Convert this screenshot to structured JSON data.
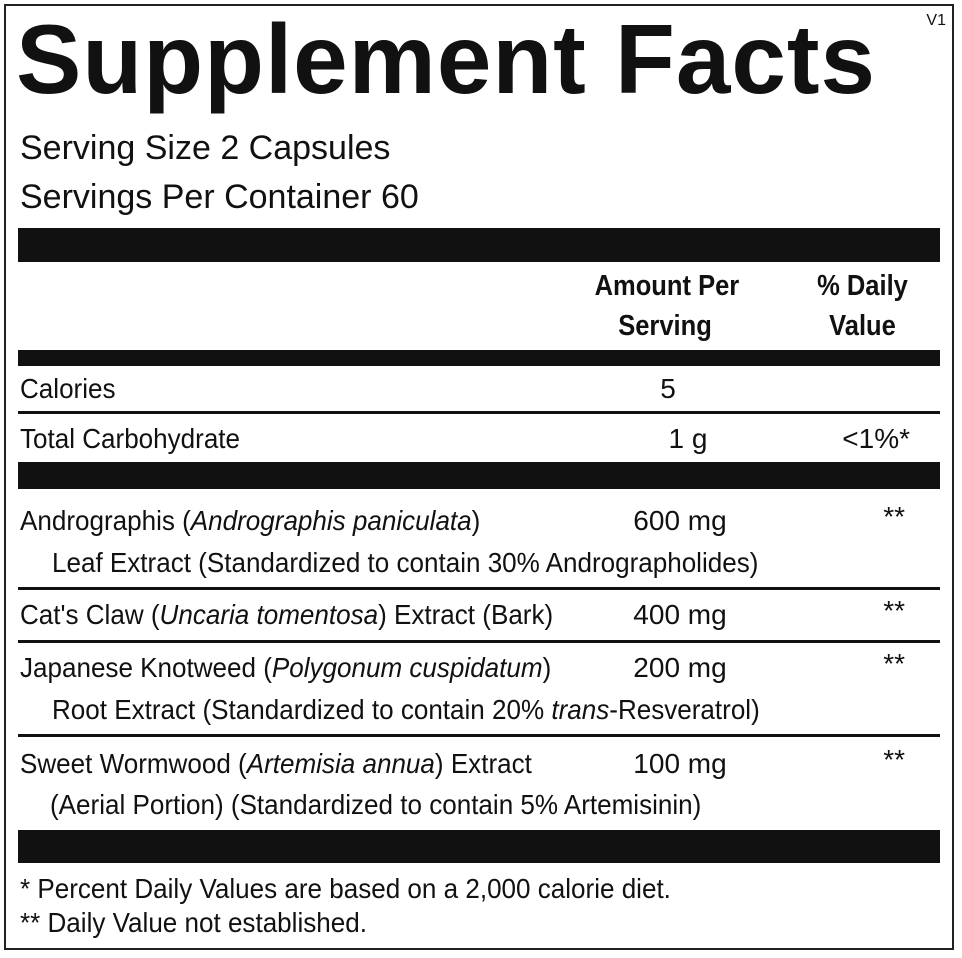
{
  "title": "Supplement Facts",
  "version": "V1",
  "serving_size": "Serving Size  2 Capsules",
  "servings_per_container": "Servings Per Container  60",
  "header": {
    "amount_line1": "Amount Per",
    "amount_line2": "Serving",
    "dv_line1": "% Daily",
    "dv_line2": "Value"
  },
  "nutrients": [
    {
      "name": "Calories",
      "amount": "5",
      "dv": ""
    },
    {
      "name": "Total Carbohydrate",
      "amount": "1 g",
      "dv": "<1%*"
    }
  ],
  "ingredients": [
    {
      "name": "Andrographis (",
      "latin": "Andrographis paniculata",
      "name_end": ")",
      "line2": "Leaf Extract (Standardized to contain 30% Andrographolides)",
      "amount": "600 mg",
      "dv": "**"
    },
    {
      "name": "Cat's Claw (",
      "latin": "Uncaria tomentosa",
      "name_end": ") Extract (Bark)",
      "amount": "400 mg",
      "dv": "**"
    },
    {
      "name": "Japanese Knotweed (",
      "latin": "Polygonum cuspidatum",
      "name_end": ")",
      "line2_pre": "Root Extract (Standardized to contain 20% ",
      "line2_italic": "trans",
      "line2_post": "-Resveratrol)",
      "amount": "200 mg",
      "dv": "**"
    },
    {
      "name": "Sweet Wormwood (",
      "latin": "Artemisia annua",
      "name_end": ") Extract",
      "line2": "(Aerial Portion) (Standardized to contain 5% Artemisinin)",
      "amount": "100 mg",
      "dv": "**"
    }
  ],
  "footnotes": [
    "* Percent Daily Values are based on a 2,000 calorie diet.",
    "** Daily Value not established."
  ]
}
